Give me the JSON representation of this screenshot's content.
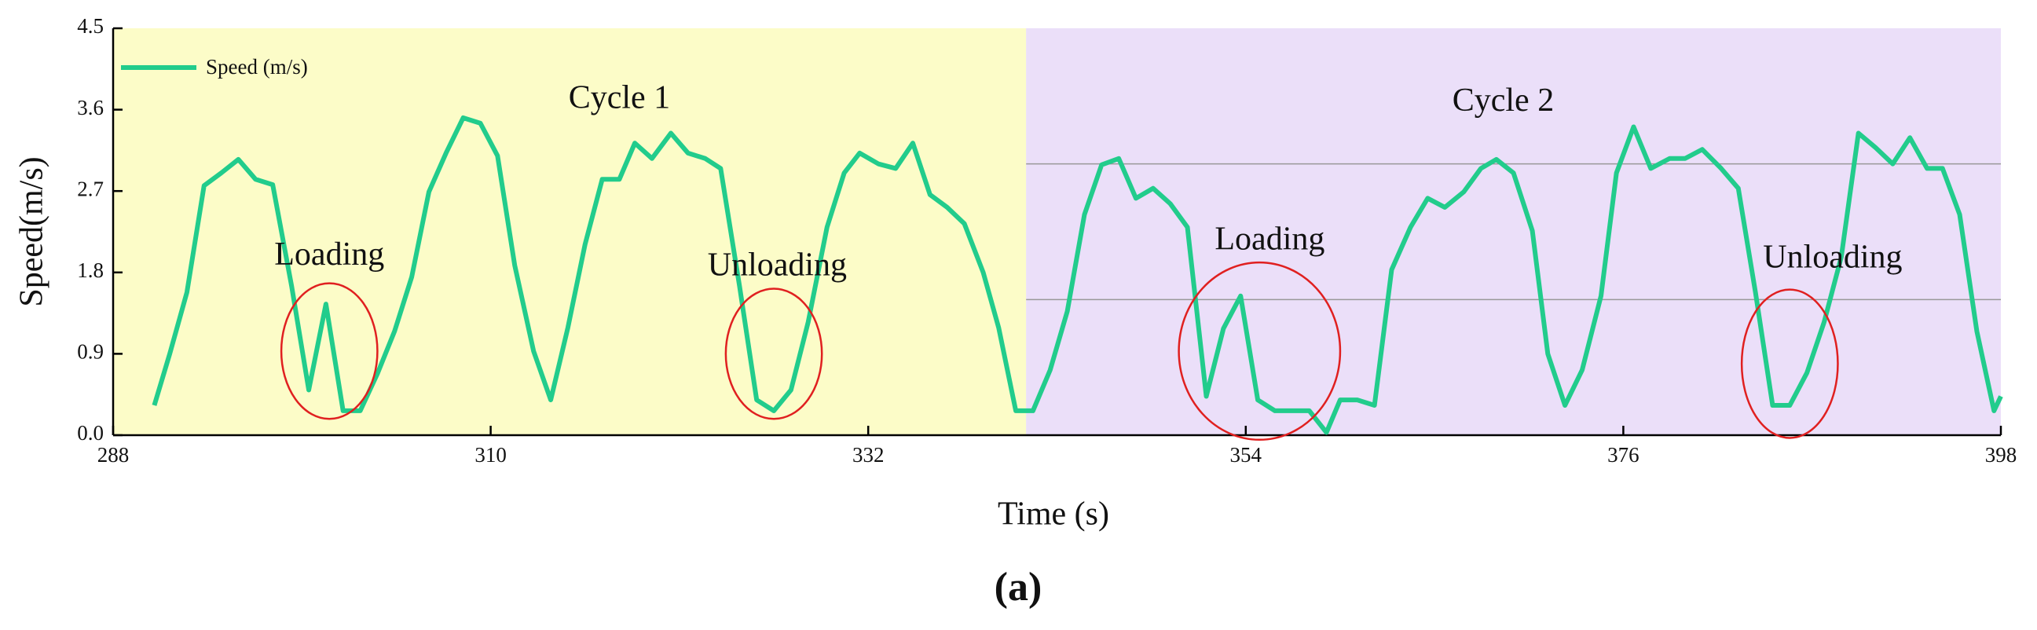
{
  "chart_data": {
    "type": "line",
    "caption": "(a)",
    "xlabel": "Time (s)",
    "ylabel": "Speed(m/s)",
    "x": [
      290.4,
      291.3,
      292.3,
      293.3,
      294.3,
      295.3,
      296.3,
      297.3,
      298.4,
      299.4,
      300.4,
      301.4,
      302.4,
      303.4,
      304.4,
      305.4,
      306.4,
      307.4,
      308.4,
      309.4,
      310.4,
      311.4,
      312.5,
      313.5,
      314.5,
      315.5,
      316.5,
      317.5,
      318.4,
      319.4,
      320.5,
      321.5,
      322.5,
      323.4,
      324.5,
      325.5,
      326.5,
      327.5,
      328.5,
      329.6,
      330.6,
      331.5,
      332.6,
      333.6,
      334.6,
      335.6,
      336.6,
      337.6,
      338.7,
      339.6,
      340.6,
      341.6,
      342.6,
      343.6,
      344.6,
      345.6,
      346.6,
      347.6,
      348.6,
      349.6,
      350.6,
      351.7,
      352.7,
      353.7,
      354.7,
      355.7,
      356.7,
      357.7,
      358.7,
      359.5,
      360.5,
      361.5,
      362.5,
      363.6,
      364.6,
      365.6,
      366.7,
      367.7,
      368.6,
      369.6,
      370.7,
      371.6,
      372.6,
      373.6,
      374.7,
      375.6,
      376.6,
      377.6,
      378.7,
      379.6,
      380.6,
      381.7,
      382.7,
      383.7,
      384.7,
      385.7,
      386.7,
      387.7,
      388.7,
      389.7,
      390.7,
      391.7,
      392.7,
      393.7,
      394.6,
      395.6,
      396.6,
      397.6,
      398
    ],
    "series": [
      {
        "name": "Speed (m/s)",
        "color": "#22cc8c",
        "values": [
          0.33,
          0.9,
          1.58,
          2.76,
          2.9,
          3.05,
          2.83,
          2.77,
          1.65,
          0.5,
          1.45,
          0.27,
          0.27,
          0.68,
          1.15,
          1.75,
          2.69,
          3.12,
          3.51,
          3.45,
          3.09,
          1.88,
          0.93,
          0.39,
          1.19,
          2.11,
          2.83,
          2.83,
          3.23,
          3.06,
          3.34,
          3.12,
          3.06,
          2.95,
          1.65,
          0.39,
          0.27,
          0.5,
          1.25,
          2.3,
          2.9,
          3.12,
          3.0,
          2.95,
          3.23,
          2.66,
          2.52,
          2.34,
          1.8,
          1.19,
          0.27,
          0.27,
          0.72,
          1.37,
          2.44,
          2.99,
          3.06,
          2.62,
          2.73,
          2.56,
          2.3,
          0.43,
          1.18,
          1.54,
          0.39,
          0.27,
          0.27,
          0.27,
          0.03,
          0.39,
          0.39,
          0.33,
          1.83,
          2.3,
          2.62,
          2.52,
          2.69,
          2.95,
          3.05,
          2.9,
          2.26,
          0.9,
          0.33,
          0.72,
          1.54,
          2.9,
          3.41,
          2.95,
          3.06,
          3.06,
          3.16,
          2.95,
          2.73,
          1.58,
          0.33,
          0.33,
          0.69,
          1.25,
          1.97,
          3.34,
          3.18,
          3.0,
          3.29,
          2.95,
          2.95,
          2.44,
          1.15,
          0.27,
          0.43
        ]
      }
    ],
    "xlim": [
      288,
      398
    ],
    "ylim": [
      0,
      4.5
    ],
    "xticks": [
      288,
      310,
      332,
      354,
      376,
      398
    ],
    "yticks": [
      {
        "value": 0,
        "label": "0.0"
      },
      0.9,
      1.8,
      2.7,
      3.6,
      4.5
    ],
    "hlines": [
      3.0,
      1.5
    ],
    "regions": [
      {
        "label": "Cycle 1",
        "start": 288,
        "end": 341.2,
        "color": "#fcfcc8",
        "label_x": 317.5,
        "label_y": 3.7
      },
      {
        "label": "Cycle 2",
        "start": 341.2,
        "end": 398,
        "color": "#ebdff9",
        "label_x": 369,
        "label_y": 3.67
      }
    ],
    "annotations": [
      {
        "text": "Loading",
        "x": 300.6,
        "y": 1.97,
        "ellipse": {
          "x": 300.6,
          "y": 0.93,
          "rx": 2.8,
          "ry": 0.75
        }
      },
      {
        "text": "Unloading",
        "x": 326.7,
        "y": 1.85,
        "ellipse": {
          "x": 326.5,
          "y": 0.9,
          "rx": 2.8,
          "ry": 0.72
        }
      },
      {
        "text": "Loading",
        "x": 355.4,
        "y": 2.14,
        "ellipse": {
          "x": 354.8,
          "y": 0.93,
          "rx": 4.7,
          "ry": 0.98
        }
      },
      {
        "text": "Unloading",
        "x": 388.2,
        "y": 1.94,
        "ellipse": {
          "x": 385.7,
          "y": 0.79,
          "rx": 2.8,
          "ry": 0.82
        }
      }
    ],
    "legend": "upper left",
    "ellipse_color": "#e02020"
  }
}
